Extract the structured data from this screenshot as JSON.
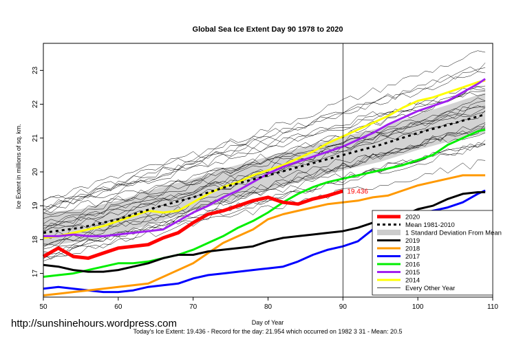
{
  "chart_data": {
    "type": "line",
    "title": "Global Sea Ice Extent Day 90 1978 to 2020",
    "xlabel": "Day of Year",
    "ylabel": "Ice Extent in millions of sq. km.",
    "xlim": [
      50,
      110
    ],
    "ylim": [
      16.3,
      23.8
    ],
    "x_ticks": [
      50,
      60,
      70,
      80,
      90,
      100,
      110
    ],
    "y_ticks": [
      17,
      18,
      19,
      20,
      21,
      22,
      23
    ],
    "grid": false,
    "legend_position": "bottom-right",
    "vertical_marker_day": 90,
    "current_value_label": "19.436",
    "band": {
      "name": "1 Standard Deviation From Mean",
      "x": [
        50,
        55,
        60,
        65,
        70,
        75,
        80,
        85,
        90,
        95,
        100,
        105,
        109
      ],
      "lower": [
        17.8,
        17.95,
        18.15,
        18.5,
        18.85,
        19.15,
        19.45,
        19.75,
        20.05,
        20.3,
        20.65,
        20.95,
        21.15
      ],
      "upper": [
        18.8,
        18.9,
        19.15,
        19.5,
        19.8,
        20.15,
        20.45,
        20.75,
        21.05,
        21.3,
        21.7,
        22.05,
        22.35
      ]
    },
    "series": [
      {
        "name": "Mean 1981-2010",
        "color": "#000000",
        "style": "dashed",
        "x": [
          50,
          55,
          60,
          65,
          70,
          75,
          80,
          85,
          90,
          95,
          100,
          105,
          109
        ],
        "values": [
          18.2,
          18.35,
          18.6,
          18.95,
          19.25,
          19.6,
          19.9,
          20.2,
          20.5,
          20.8,
          21.15,
          21.45,
          21.7
        ]
      },
      {
        "name": "2020",
        "color": "#ff0000",
        "style": "solid",
        "x": [
          50,
          52,
          54,
          56,
          58,
          60,
          62,
          64,
          66,
          68,
          70,
          72,
          74,
          76,
          78,
          80,
          82,
          84,
          86,
          88,
          90
        ],
        "values": [
          17.5,
          17.75,
          17.5,
          17.45,
          17.6,
          17.75,
          17.8,
          17.85,
          18.05,
          18.2,
          18.5,
          18.75,
          18.85,
          19.0,
          19.15,
          19.25,
          19.1,
          19.05,
          19.2,
          19.3,
          19.436
        ]
      },
      {
        "name": "2019",
        "color": "#000000",
        "style": "solid",
        "x": [
          50,
          52,
          54,
          56,
          58,
          60,
          62,
          64,
          66,
          68,
          70,
          72,
          74,
          76,
          78,
          80,
          82,
          84,
          86,
          88,
          90,
          92,
          94,
          96,
          98,
          100,
          102,
          104,
          106,
          108,
          109
        ],
        "values": [
          17.25,
          17.2,
          17.1,
          17.05,
          17.05,
          17.1,
          17.2,
          17.3,
          17.45,
          17.55,
          17.55,
          17.65,
          17.7,
          17.75,
          17.8,
          17.95,
          18.05,
          18.1,
          18.15,
          18.2,
          18.25,
          18.35,
          18.5,
          18.55,
          18.7,
          18.9,
          19.0,
          19.2,
          19.35,
          19.4,
          19.4
        ]
      },
      {
        "name": "2018",
        "color": "#ff9900",
        "style": "solid",
        "x": [
          50,
          52,
          54,
          56,
          58,
          60,
          62,
          64,
          66,
          68,
          70,
          72,
          74,
          76,
          78,
          80,
          82,
          84,
          86,
          88,
          90,
          92,
          94,
          96,
          98,
          100,
          102,
          104,
          106,
          108,
          109
        ],
        "values": [
          16.35,
          16.4,
          16.45,
          16.5,
          16.55,
          16.6,
          16.65,
          16.7,
          16.9,
          17.1,
          17.3,
          17.6,
          17.9,
          18.1,
          18.3,
          18.6,
          18.75,
          18.85,
          18.95,
          19.05,
          19.1,
          19.15,
          19.25,
          19.3,
          19.45,
          19.6,
          19.7,
          19.8,
          19.9,
          19.9,
          19.9
        ]
      },
      {
        "name": "2017",
        "color": "#0000ff",
        "style": "solid",
        "x": [
          50,
          52,
          54,
          56,
          58,
          60,
          62,
          64,
          66,
          68,
          70,
          72,
          74,
          76,
          78,
          80,
          82,
          84,
          86,
          88,
          90,
          92,
          94,
          96,
          98,
          100,
          102,
          104,
          106,
          108,
          109
        ],
        "values": [
          16.55,
          16.6,
          16.55,
          16.5,
          16.45,
          16.45,
          16.5,
          16.6,
          16.65,
          16.7,
          16.85,
          16.95,
          17.0,
          17.05,
          17.1,
          17.15,
          17.2,
          17.35,
          17.55,
          17.7,
          17.8,
          17.95,
          18.3,
          18.45,
          18.6,
          18.75,
          18.85,
          18.95,
          19.1,
          19.35,
          19.45
        ]
      },
      {
        "name": "2016",
        "color": "#00ee00",
        "style": "solid",
        "x": [
          50,
          52,
          54,
          56,
          58,
          60,
          62,
          64,
          66,
          68,
          70,
          72,
          74,
          76,
          78,
          80,
          82,
          84,
          86,
          88,
          90,
          92,
          94,
          96,
          98,
          100,
          102,
          104,
          106,
          108,
          109
        ],
        "values": [
          16.9,
          16.95,
          17.0,
          17.1,
          17.2,
          17.3,
          17.3,
          17.35,
          17.45,
          17.55,
          17.7,
          17.9,
          18.1,
          18.35,
          18.55,
          18.8,
          19.1,
          19.35,
          19.55,
          19.7,
          19.8,
          19.9,
          20.0,
          20.1,
          20.2,
          20.35,
          20.5,
          20.8,
          21.0,
          21.2,
          21.25
        ]
      },
      {
        "name": "2015",
        "color": "#a020f0",
        "style": "solid",
        "x": [
          50,
          52,
          54,
          56,
          58,
          60,
          62,
          64,
          66,
          68,
          70,
          72,
          74,
          76,
          78,
          80,
          82,
          84,
          86,
          88,
          90,
          92,
          94,
          96,
          98,
          100,
          102,
          104,
          106,
          108,
          109
        ],
        "values": [
          18.1,
          18.1,
          18.15,
          18.1,
          18.1,
          18.15,
          18.2,
          18.25,
          18.3,
          18.55,
          18.8,
          19.0,
          19.25,
          19.45,
          19.7,
          19.95,
          20.15,
          20.3,
          20.45,
          20.6,
          20.75,
          20.95,
          21.15,
          21.4,
          21.6,
          21.8,
          21.95,
          22.1,
          22.35,
          22.6,
          22.75
        ]
      },
      {
        "name": "2014",
        "color": "#ffff00",
        "style": "solid",
        "x": [
          50,
          52,
          54,
          56,
          58,
          60,
          62,
          64,
          66,
          68,
          70,
          72,
          74,
          76,
          78,
          80,
          82,
          84,
          86,
          88,
          90,
          92,
          94,
          96,
          98,
          100,
          102,
          104,
          106,
          108,
          109
        ],
        "values": [
          18.05,
          18.1,
          18.2,
          18.3,
          18.4,
          18.55,
          18.7,
          18.85,
          18.8,
          18.85,
          19.1,
          19.35,
          19.55,
          19.7,
          19.9,
          20.05,
          20.2,
          20.4,
          20.6,
          20.85,
          21.05,
          21.25,
          21.45,
          21.65,
          21.9,
          22.1,
          22.2,
          22.35,
          22.5,
          22.65,
          22.7
        ]
      }
    ],
    "legend": [
      {
        "label": "2020",
        "color": "#ff0000",
        "kind": "line"
      },
      {
        "label": "Mean 1981-2010",
        "color": "#000000",
        "kind": "dashed"
      },
      {
        "label": "1 Standard Deviation From Mean",
        "color": "#cccccc",
        "kind": "box"
      },
      {
        "label": "2019",
        "color": "#000000",
        "kind": "line"
      },
      {
        "label": "2018",
        "color": "#ff9900",
        "kind": "line"
      },
      {
        "label": "2017",
        "color": "#0000ff",
        "kind": "line"
      },
      {
        "label": "2016",
        "color": "#00ee00",
        "kind": "line"
      },
      {
        "label": "2015",
        "color": "#a020f0",
        "kind": "line"
      },
      {
        "label": "2014",
        "color": "#ffff00",
        "kind": "line"
      },
      {
        "label": "Every Other Year",
        "color": "#000000",
        "kind": "thin"
      }
    ]
  },
  "watermark": "http://sunshinehours.wordpress.com",
  "footer": "Today's Ice Extent: 19.436  - Record for the day: 21.954 which occurred on 1982 3 31  - Mean: 20.5"
}
